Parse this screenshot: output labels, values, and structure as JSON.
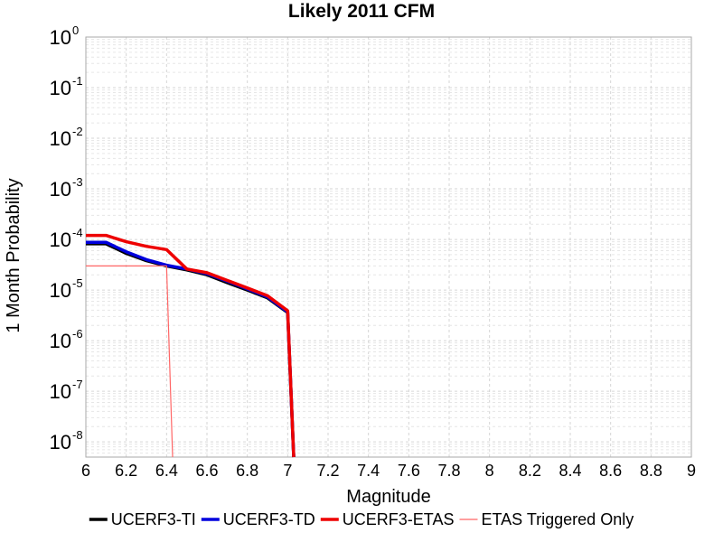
{
  "chart_data": {
    "type": "line",
    "title": "Likely 2011 CFM",
    "xlabel": "Magnitude",
    "ylabel": "1 Month Probability",
    "xlim": [
      6,
      9
    ],
    "ylim": [
      5e-09,
      1
    ],
    "yscale": "log",
    "grid": true,
    "legend": "bottom",
    "x_ticks": [
      "6",
      "6.2",
      "6.4",
      "6.6",
      "6.8",
      "7",
      "7.2",
      "7.4",
      "7.6",
      "7.8",
      "8",
      "8.2",
      "8.4",
      "8.6",
      "8.8",
      "9"
    ],
    "y_ticks": [
      {
        "base": "10",
        "exp": "0",
        "value": 1
      },
      {
        "base": "10",
        "exp": "-1",
        "value": 0.1
      },
      {
        "base": "10",
        "exp": "-2",
        "value": 0.01
      },
      {
        "base": "10",
        "exp": "-3",
        "value": 0.001
      },
      {
        "base": "10",
        "exp": "-4",
        "value": 0.0001
      },
      {
        "base": "10",
        "exp": "-5",
        "value": 1e-05
      },
      {
        "base": "10",
        "exp": "-6",
        "value": 1e-06
      },
      {
        "base": "10",
        "exp": "-7",
        "value": 1e-07
      },
      {
        "base": "10",
        "exp": "-8",
        "value": 1e-08
      }
    ],
    "series": [
      {
        "name": "UCERF3-TI",
        "color": "#000000",
        "width": 3.5,
        "x": [
          6.0,
          6.1,
          6.2,
          6.3,
          6.4,
          6.5,
          6.6,
          6.7,
          6.8,
          6.9,
          7.0,
          7.03
        ],
        "y": [
          8.2e-05,
          8.2e-05,
          5.3e-05,
          3.8e-05,
          3e-05,
          2.5e-05,
          2e-05,
          1.4e-05,
          1e-05,
          7e-06,
          3.6e-06,
          5e-09
        ]
      },
      {
        "name": "UCERF3-TD",
        "color": "#0000dd",
        "width": 3.5,
        "x": [
          6.0,
          6.1,
          6.2,
          6.3,
          6.4,
          6.5,
          6.6,
          6.7,
          6.8,
          6.9,
          7.0,
          7.03
        ],
        "y": [
          8.8e-05,
          8.8e-05,
          5.7e-05,
          4e-05,
          3.1e-05,
          2.6e-05,
          2.1e-05,
          1.5e-05,
          1.05e-05,
          7.3e-06,
          3.7e-06,
          5e-09
        ]
      },
      {
        "name": "UCERF3-ETAS",
        "color": "#ee0000",
        "width": 3.5,
        "x": [
          6.0,
          6.1,
          6.2,
          6.3,
          6.4,
          6.5,
          6.6,
          6.7,
          6.8,
          6.9,
          7.0,
          7.03
        ],
        "y": [
          0.00012,
          0.00012,
          9e-05,
          7.3e-05,
          6.3e-05,
          2.6e-05,
          2.2e-05,
          1.55e-05,
          1.1e-05,
          7.7e-06,
          3.9e-06,
          5e-09
        ]
      },
      {
        "name": "ETAS Triggered Only",
        "color": "#ff6666",
        "width": 1.2,
        "x": [
          6.0,
          6.1,
          6.2,
          6.3,
          6.4,
          6.43
        ],
        "y": [
          3e-05,
          3e-05,
          3e-05,
          3e-05,
          3e-05,
          5e-09
        ]
      }
    ]
  }
}
